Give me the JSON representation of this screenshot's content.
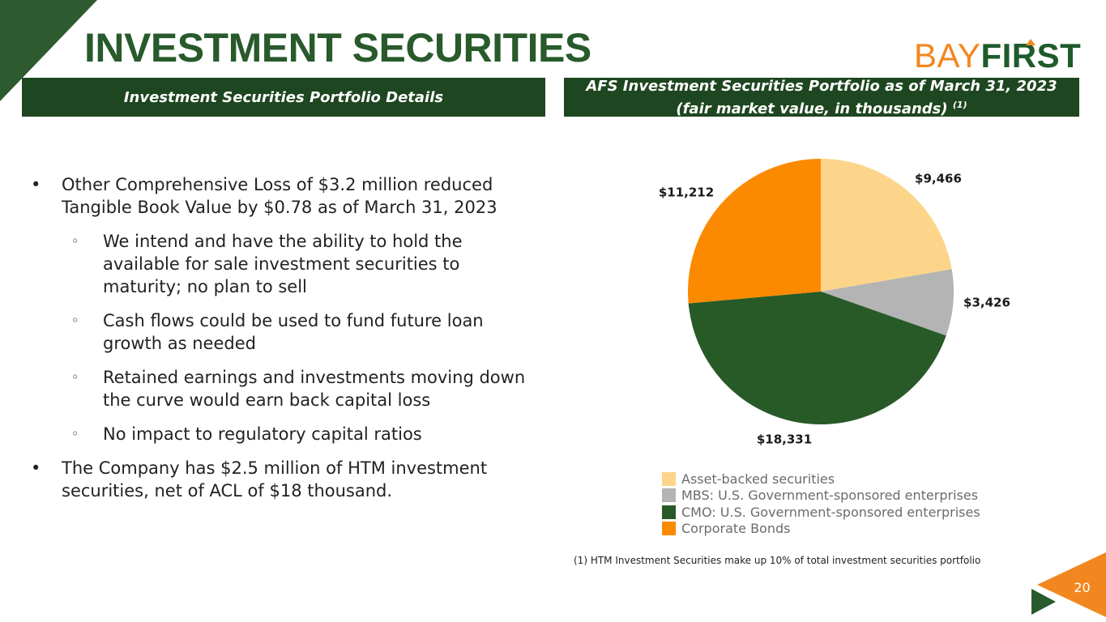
{
  "title": "INVESTMENT SECURITIES",
  "logo": {
    "part1": "BAY",
    "part2": "FIRST"
  },
  "left_band": {
    "label": "Investment Securities Portfolio Details"
  },
  "right_band": {
    "line1": "AFS Investment Securities Portfolio as of March 31, 2023",
    "line2": "(fair market value, in thousands)",
    "note_ref": "(1)"
  },
  "bullets": [
    {
      "level": 1,
      "symbol": "•",
      "text": "Other Comprehensive Loss of $3.2 million reduced Tangible Book Value by $0.78 as of March 31, 2023"
    },
    {
      "level": 2,
      "symbol": "◦",
      "text": "We intend and have the ability to hold the available for sale investment securities to maturity; no plan to sell"
    },
    {
      "level": 2,
      "symbol": "◦",
      "text": "Cash flows could be used to fund future loan growth as needed"
    },
    {
      "level": 2,
      "symbol": "◦",
      "text": "Retained earnings and investments moving down the curve would earn back capital loss"
    },
    {
      "level": 2,
      "symbol": "◦",
      "text": "No impact to regulatory capital ratios"
    },
    {
      "level": 1,
      "symbol": "•",
      "text": "The Company has $2.5 million of HTM investment securities, net of ACL of $18 thousand."
    }
  ],
  "chart_data": {
    "type": "pie",
    "title": "AFS Investment Securities Portfolio as of March 31, 2023",
    "categories": [
      "Asset-backed securities",
      "MBS: U.S. Government-sponsored enterprises",
      "CMO: U.S. Government-sponsored enterprises",
      "Corporate Bonds"
    ],
    "values": [
      9466,
      3426,
      18331,
      11212
    ],
    "labels": [
      "$9,466",
      "$3,426",
      "$18,331",
      "$11,212"
    ],
    "colors": [
      "#fcd58a",
      "#b4b4b4",
      "#285a28",
      "#fb8a00"
    ],
    "legend_position": "bottom"
  },
  "footnote": "(1) HTM Investment Securities make up 10% of total investment securities portfolio",
  "page_number": "20"
}
